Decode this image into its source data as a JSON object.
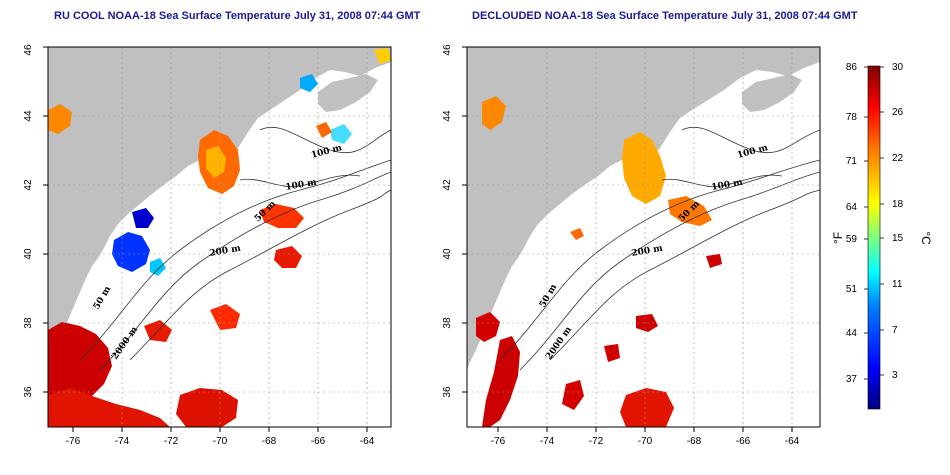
{
  "panels": [
    {
      "title": "RU COOL NOAA-18 Sea Surface Temperature July 31, 2008 07:44 GMT",
      "contour_labels": [
        "100 m",
        "100 m",
        "50 m",
        "200 m",
        "50 m",
        "2000 m"
      ]
    },
    {
      "title": "DECLOUDED NOAA-18 Sea Surface Temperature July 31, 2008 07:44 GMT",
      "contour_labels": [
        "100 m",
        "100 m",
        "50 m",
        "200 m",
        "50 m",
        "2000 m"
      ]
    }
  ],
  "axes": {
    "lon_ticks": [
      "-76",
      "-74",
      "-72",
      "-70",
      "-68",
      "-66",
      "-64"
    ],
    "lat_ticks": [
      "36",
      "38",
      "40",
      "42",
      "44",
      "46"
    ],
    "lon_range": [
      -77.2,
      -63.0
    ],
    "lat_range": [
      35.0,
      46.0
    ]
  },
  "colorbar": {
    "fahrenheit_ticks": [
      "86",
      "78",
      "71",
      "64",
      "59",
      "51",
      "44",
      "37"
    ],
    "celsius_ticks": [
      "30",
      "26",
      "22",
      "18",
      "15",
      "11",
      "7",
      "3"
    ],
    "fahrenheit_unit": "°F",
    "celsius_unit": "°C",
    "range_c": [
      0,
      30
    ],
    "colors": [
      "#00007f",
      "#0000ff",
      "#007fff",
      "#00ffff",
      "#7fff7f",
      "#ffff00",
      "#ff7f00",
      "#ff0000",
      "#7f0000"
    ]
  },
  "colors": {
    "land": "#c0c0c0",
    "ocean_no_data": "#ffffff",
    "title": "#1a1a9a"
  }
}
